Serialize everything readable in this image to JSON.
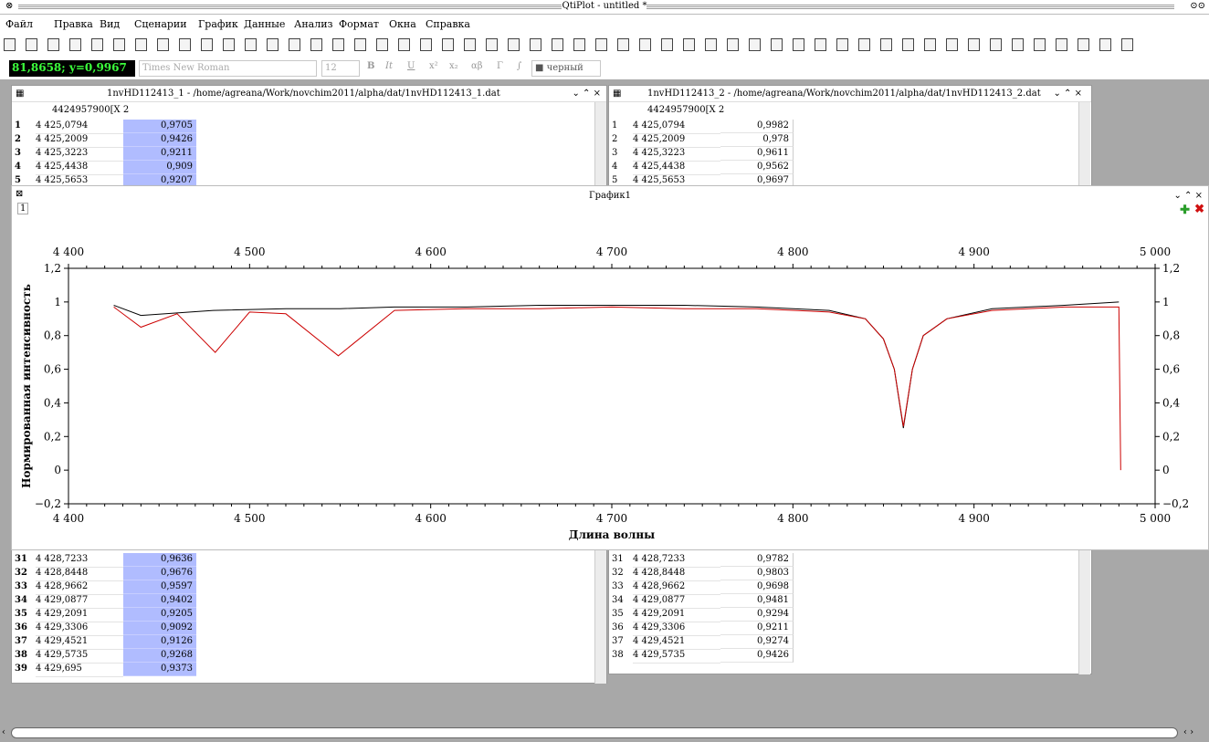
{
  "window": {
    "title": "QtiPlot - untitled *",
    "controls": "⊙⊙"
  },
  "menu": [
    "Файл",
    "Правка",
    "Вид",
    "Сценарии",
    "График",
    "Данные",
    "Анализ",
    "Формат",
    "Окна",
    "Справка"
  ],
  "toolbar2": {
    "coord": "81,8658; y=0,9967",
    "font": "Times New Roman",
    "size": "12",
    "bold": "B",
    "italic": "It",
    "underline": "U",
    "sup": "x²",
    "sub": "x₂",
    "greek": "αβ",
    "Greek": "Γ",
    "integral": "∫",
    "color": "■ черный"
  },
  "table1": {
    "title": "1nvHD112413_1 - /home/agreana/Work/novchim2011/alpha/dat/1nvHD112413_1.dat",
    "header": "4424957900[X 2",
    "controls": "⌄ ⌃ ×",
    "rows_top": [
      [
        "1",
        "4 425,0794",
        "0,9705"
      ],
      [
        "2",
        "4 425,2009",
        "0,9426"
      ],
      [
        "3",
        "4 425,3223",
        "0,9211"
      ],
      [
        "4",
        "4 425,4438",
        "0,909"
      ],
      [
        "5",
        "4 425,5653",
        "0,9207"
      ]
    ],
    "rows_bottom": [
      [
        "31",
        "4 428,7233",
        "0,9636"
      ],
      [
        "32",
        "4 428,8448",
        "0,9676"
      ],
      [
        "33",
        "4 428,9662",
        "0,9597"
      ],
      [
        "34",
        "4 429,0877",
        "0,9402"
      ],
      [
        "35",
        "4 429,2091",
        "0,9205"
      ],
      [
        "36",
        "4 429,3306",
        "0,9092"
      ],
      [
        "37",
        "4 429,4521",
        "0,9126"
      ],
      [
        "38",
        "4 429,5735",
        "0,9268"
      ],
      [
        "39",
        "4 429,695",
        "0,9373"
      ]
    ]
  },
  "table2": {
    "title": "1nvHD112413_2 - /home/agreana/Work/novchim2011/alpha/dat/1nvHD112413_2.dat",
    "header": "4424957900[X 2",
    "controls": "⌄ ⌃ ×",
    "rows_top": [
      [
        "1",
        "4 425,0794",
        "0,9982"
      ],
      [
        "2",
        "4 425,2009",
        "0,978"
      ],
      [
        "3",
        "4 425,3223",
        "0,9611"
      ],
      [
        "4",
        "4 425,4438",
        "0,9562"
      ],
      [
        "5",
        "4 425,5653",
        "0,9697"
      ]
    ],
    "rows_bottom": [
      [
        "31",
        "4 428,7233",
        "0,9782"
      ],
      [
        "32",
        "4 428,8448",
        "0,9803"
      ],
      [
        "33",
        "4 428,9662",
        "0,9698"
      ],
      [
        "34",
        "4 429,0877",
        "0,9481"
      ],
      [
        "35",
        "4 429,2091",
        "0,9294"
      ],
      [
        "36",
        "4 429,3306",
        "0,9211"
      ],
      [
        "37",
        "4 429,4521",
        "0,9274"
      ],
      [
        "38",
        "4 429,5735",
        "0,9426"
      ]
    ]
  },
  "graph": {
    "title": "График1",
    "layer": "1",
    "controls": "⌄ ⌃ ×"
  },
  "chart_data": {
    "type": "line",
    "xlabel": "Длина волны",
    "ylabel": "Нормированная интенсивность",
    "xlim": [
      4400,
      5000
    ],
    "ylim": [
      -0.2,
      1.2
    ],
    "xticks": [
      "4 400",
      "4 500",
      "4 600",
      "4 700",
      "4 800",
      "4 900",
      "5 000"
    ],
    "yticks_left": [
      "−0,2",
      "0",
      "0,2",
      "0,4",
      "0,6",
      "0,8",
      "1",
      "1,2"
    ],
    "yticks_right": [
      "−0,2",
      "0",
      "0,2",
      "0,4",
      "0,6",
      "0,8",
      "1",
      "1,2"
    ],
    "series": [
      {
        "color": "#000000",
        "x": [
          4425,
          4440,
          4480,
          4520,
          4550,
          4580,
          4620,
          4660,
          4700,
          4740,
          4780,
          4820,
          4840,
          4850,
          4856,
          4861,
          4866,
          4872,
          4885,
          4910,
          4950,
          4980
        ],
        "y": [
          0.98,
          0.92,
          0.95,
          0.96,
          0.96,
          0.97,
          0.97,
          0.98,
          0.98,
          0.98,
          0.97,
          0.95,
          0.9,
          0.78,
          0.6,
          0.25,
          0.6,
          0.8,
          0.9,
          0.96,
          0.98,
          1.0
        ]
      },
      {
        "color": "#cc0000",
        "x": [
          4425,
          4440,
          4460,
          4481,
          4500,
          4520,
          4549,
          4580,
          4620,
          4660,
          4700,
          4740,
          4780,
          4820,
          4840,
          4850,
          4856,
          4861,
          4866,
          4872,
          4885,
          4910,
          4950,
          4980,
          4981
        ],
        "y": [
          0.97,
          0.85,
          0.93,
          0.7,
          0.94,
          0.93,
          0.68,
          0.95,
          0.96,
          0.96,
          0.97,
          0.96,
          0.96,
          0.94,
          0.9,
          0.78,
          0.6,
          0.26,
          0.6,
          0.8,
          0.9,
          0.95,
          0.97,
          0.97,
          0.0
        ]
      }
    ]
  }
}
